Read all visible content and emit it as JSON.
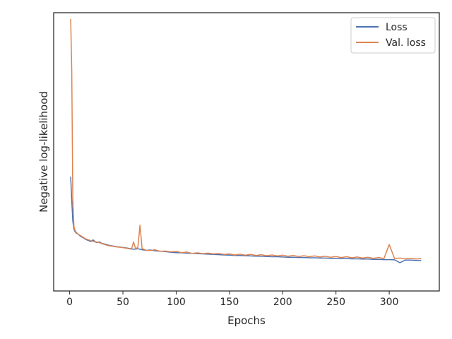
{
  "chart_data": {
    "type": "line",
    "title": "",
    "xlabel": "Epochs",
    "ylabel": "Negative log-likelihood",
    "xlim": [
      -15,
      347
    ],
    "ylim": [
      0,
      1
    ],
    "x_ticks": [
      0,
      50,
      100,
      150,
      200,
      250,
      300
    ],
    "y_ticks_shown": false,
    "grid": false,
    "legend": {
      "placement": "top-right"
    },
    "series": [
      {
        "name": "Loss",
        "color": "#4c72b0",
        "x": [
          1,
          2,
          3,
          4,
          5,
          6,
          8,
          10,
          12,
          15,
          18,
          20,
          22,
          25,
          28,
          30,
          33,
          36,
          40,
          44,
          48,
          52,
          56,
          60,
          64,
          68,
          72,
          76,
          80,
          85,
          90,
          95,
          100,
          105,
          110,
          115,
          120,
          125,
          130,
          135,
          140,
          145,
          150,
          155,
          160,
          165,
          170,
          175,
          180,
          185,
          190,
          195,
          200,
          205,
          210,
          215,
          220,
          225,
          230,
          235,
          240,
          245,
          250,
          255,
          260,
          265,
          270,
          275,
          280,
          285,
          290,
          295,
          300,
          305,
          310,
          315,
          320,
          325,
          330
        ],
        "values": [
          0.392,
          0.3,
          0.22,
          0.19,
          0.18,
          0.175,
          0.17,
          0.162,
          0.158,
          0.15,
          0.145,
          0.142,
          0.148,
          0.138,
          0.14,
          0.135,
          0.132,
          0.128,
          0.125,
          0.122,
          0.12,
          0.118,
          0.115,
          0.112,
          0.114,
          0.11,
          0.108,
          0.109,
          0.106,
          0.104,
          0.103,
          0.1,
          0.099,
          0.098,
          0.097,
          0.096,
          0.095,
          0.094,
          0.093,
          0.092,
          0.091,
          0.09,
          0.089,
          0.088,
          0.088,
          0.087,
          0.086,
          0.085,
          0.085,
          0.084,
          0.083,
          0.083,
          0.082,
          0.081,
          0.081,
          0.08,
          0.08,
          0.079,
          0.079,
          0.078,
          0.078,
          0.077,
          0.077,
          0.076,
          0.076,
          0.075,
          0.075,
          0.074,
          0.074,
          0.073,
          0.073,
          0.072,
          0.072,
          0.071,
          0.06,
          0.07,
          0.07,
          0.069,
          0.068
        ]
      },
      {
        "name": "Val. loss",
        "color": "#dd8452",
        "x": [
          1,
          2,
          3,
          4,
          5,
          6,
          8,
          10,
          12,
          15,
          18,
          20,
          22,
          25,
          28,
          30,
          33,
          36,
          40,
          44,
          48,
          52,
          56,
          58,
          60,
          62,
          64,
          66,
          68,
          72,
          76,
          80,
          85,
          90,
          95,
          100,
          105,
          110,
          115,
          120,
          125,
          130,
          135,
          140,
          145,
          150,
          155,
          160,
          165,
          170,
          175,
          180,
          185,
          190,
          195,
          200,
          205,
          210,
          215,
          220,
          225,
          230,
          235,
          240,
          245,
          250,
          255,
          260,
          265,
          270,
          275,
          280,
          285,
          290,
          295,
          300,
          305,
          310,
          315,
          320,
          325,
          330
        ],
        "values": [
          1.0,
          0.8,
          0.3,
          0.2,
          0.185,
          0.178,
          0.17,
          0.165,
          0.16,
          0.152,
          0.148,
          0.145,
          0.142,
          0.14,
          0.137,
          0.134,
          0.13,
          0.126,
          0.124,
          0.121,
          0.119,
          0.117,
          0.114,
          0.112,
          0.14,
          0.113,
          0.12,
          0.205,
          0.115,
          0.108,
          0.107,
          0.11,
          0.104,
          0.105,
          0.102,
          0.104,
          0.099,
          0.101,
          0.096,
          0.098,
          0.095,
          0.097,
          0.094,
          0.096,
          0.092,
          0.094,
          0.09,
          0.093,
          0.089,
          0.092,
          0.088,
          0.091,
          0.087,
          0.09,
          0.086,
          0.089,
          0.085,
          0.088,
          0.084,
          0.087,
          0.083,
          0.086,
          0.082,
          0.085,
          0.081,
          0.084,
          0.08,
          0.083,
          0.079,
          0.082,
          0.078,
          0.081,
          0.077,
          0.08,
          0.076,
          0.13,
          0.076,
          0.078,
          0.075,
          0.077,
          0.074,
          0.076
        ]
      }
    ]
  }
}
